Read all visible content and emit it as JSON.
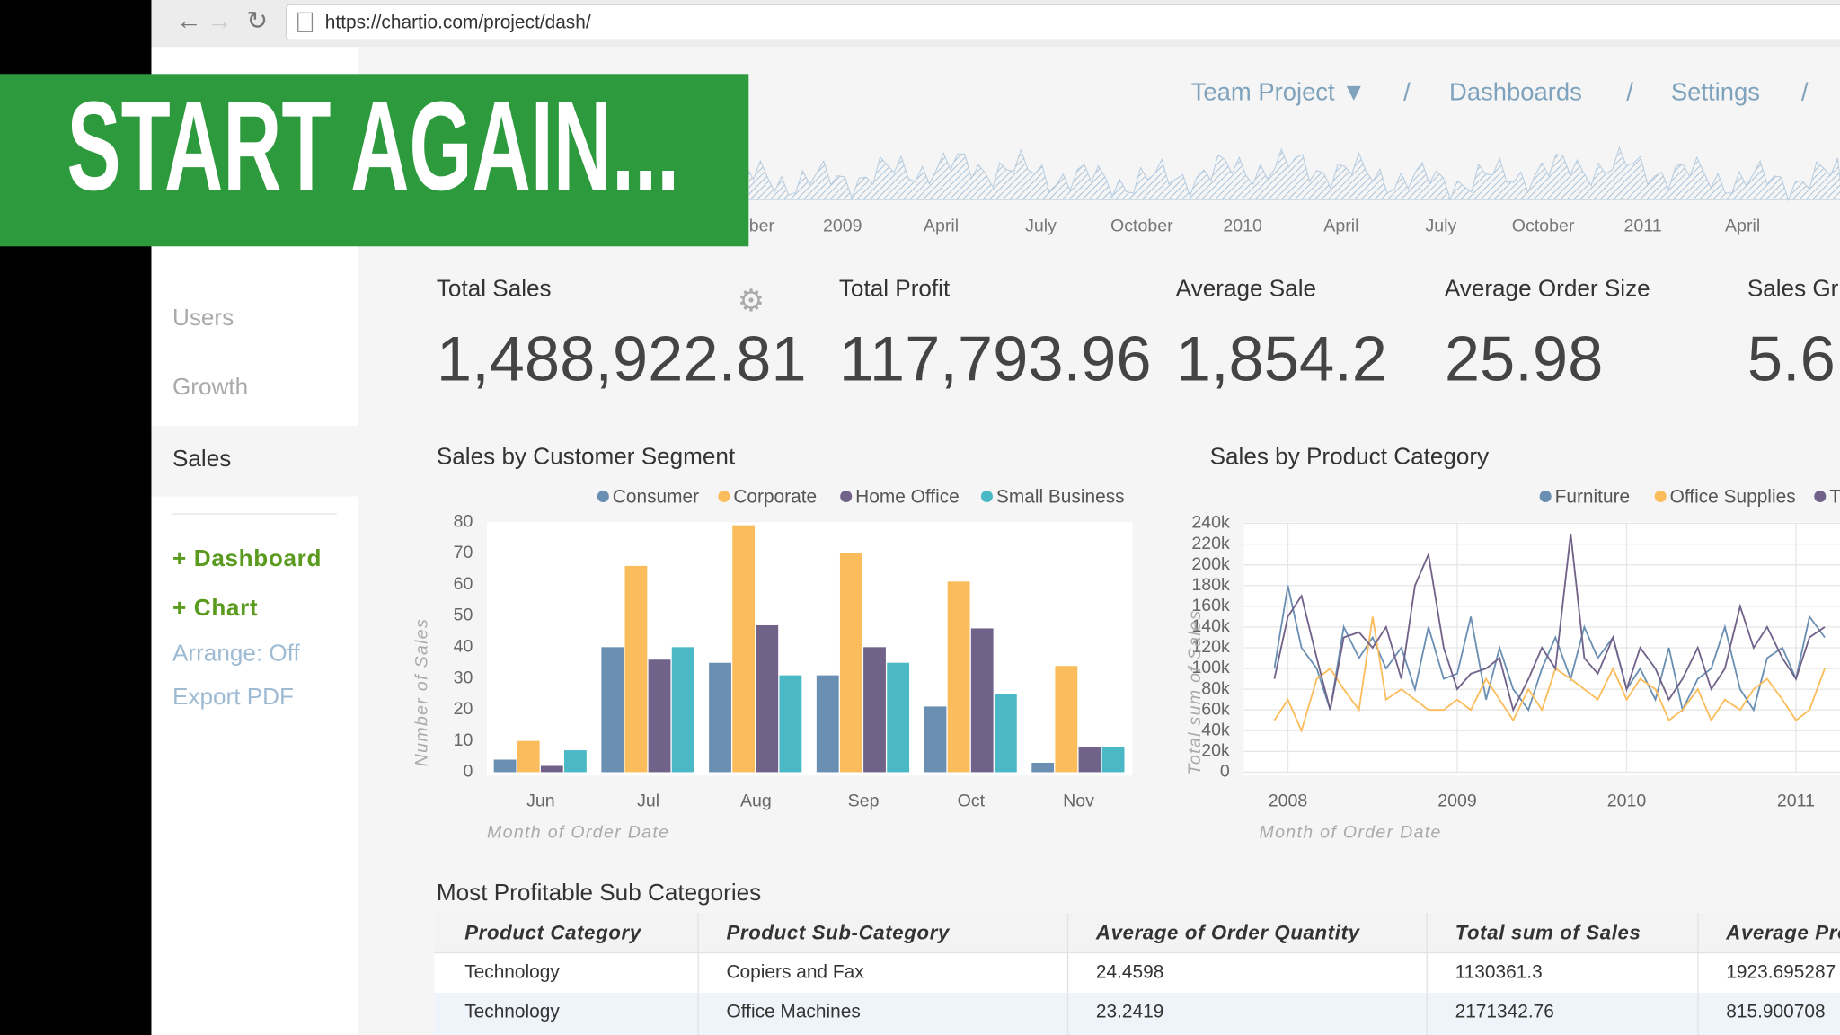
{
  "browser": {
    "url": "https://chartio.com/project/dash/"
  },
  "banner": {
    "text": "START AGAIN..."
  },
  "nav": [
    "Team Project ▼",
    "/",
    "Dashboards",
    "/",
    "Settings",
    "/"
  ],
  "timeline": {
    "labels": [
      "October",
      "2009",
      "April",
      "July",
      "October",
      "2010",
      "April",
      "July",
      "October",
      "2011",
      "April"
    ]
  },
  "sidebar": {
    "items": [
      "Users",
      "Growth",
      "Sales"
    ],
    "actions": [
      "+ Dashboard",
      "+ Chart",
      "Arrange: Off",
      "Export PDF"
    ]
  },
  "kpis": [
    {
      "label": "Total Sales",
      "value": "1,488,922.81"
    },
    {
      "label": "Total Profit",
      "value": "117,793.96"
    },
    {
      "label": "Average Sale",
      "value": "1,854.2"
    },
    {
      "label": "Average Order Size",
      "value": "25.98"
    },
    {
      "label": "Sales Gr",
      "value": "5.6"
    }
  ],
  "chart_data": [
    {
      "type": "bar",
      "title": "Sales by Customer Segment",
      "x_label": "Month of Order Date",
      "y_label": "Number of Sales",
      "categories": [
        "Jun",
        "Jul",
        "Aug",
        "Sep",
        "Oct",
        "Nov"
      ],
      "series": [
        {
          "name": "Consumer",
          "color": "#6a8fb3",
          "values": [
            4,
            40,
            35,
            31,
            21,
            3
          ]
        },
        {
          "name": "Corporate",
          "color": "#fbbd5c",
          "values": [
            10,
            66,
            79,
            70,
            61,
            34
          ]
        },
        {
          "name": "Home Office",
          "color": "#71628a",
          "values": [
            2,
            36,
            47,
            40,
            46,
            8
          ]
        },
        {
          "name": "Small Business",
          "color": "#4bb8c6",
          "values": [
            7,
            40,
            31,
            35,
            25,
            8
          ]
        }
      ],
      "ylim": [
        0,
        80
      ],
      "yticks": [
        0,
        10,
        20,
        30,
        40,
        50,
        60,
        70,
        80
      ],
      "legend": "top"
    },
    {
      "type": "line",
      "title": "Sales by Product Category",
      "x_label": "Month of Order Date",
      "y_label": "Total sum of Sales",
      "x": [
        2007.92,
        2008.0,
        2008.08,
        2008.17,
        2008.25,
        2008.33,
        2008.42,
        2008.5,
        2008.58,
        2008.67,
        2008.75,
        2008.83,
        2008.92,
        2009.0,
        2009.08,
        2009.17,
        2009.25,
        2009.33,
        2009.42,
        2009.5,
        2009.58,
        2009.67,
        2009.75,
        2009.83,
        2009.92,
        2010.0,
        2010.08,
        2010.17,
        2010.25,
        2010.33,
        2010.42,
        2010.5,
        2010.58,
        2010.67,
        2010.75,
        2010.83,
        2010.92,
        2011.0,
        2011.08,
        2011.17
      ],
      "series": [
        {
          "name": "Furniture",
          "color": "#6a8fb3",
          "values": [
            100000,
            180000,
            120000,
            100000,
            60000,
            140000,
            110000,
            130000,
            100000,
            120000,
            80000,
            140000,
            90000,
            95000,
            150000,
            70000,
            120000,
            80000,
            60000,
            100000,
            130000,
            90000,
            140000,
            110000,
            130000,
            80000,
            100000,
            70000,
            120000,
            60000,
            90000,
            100000,
            140000,
            80000,
            60000,
            110000,
            120000,
            90000,
            150000,
            130000
          ]
        },
        {
          "name": "Office Supplies",
          "color": "#fbbd5c",
          "values": [
            50000,
            70000,
            40000,
            90000,
            100000,
            80000,
            60000,
            150000,
            70000,
            80000,
            70000,
            60000,
            60000,
            70000,
            60000,
            90000,
            70000,
            50000,
            80000,
            60000,
            100000,
            90000,
            80000,
            70000,
            100000,
            70000,
            90000,
            80000,
            50000,
            60000,
            80000,
            50000,
            70000,
            60000,
            80000,
            90000,
            70000,
            50000,
            60000,
            100000
          ]
        },
        {
          "name": "T",
          "color": "#71628a",
          "values": [
            90000,
            150000,
            170000,
            110000,
            60000,
            130000,
            135000,
            120000,
            140000,
            90000,
            180000,
            210000,
            120000,
            80000,
            95000,
            100000,
            110000,
            60000,
            90000,
            120000,
            100000,
            230000,
            110000,
            95000,
            130000,
            80000,
            120000,
            100000,
            70000,
            90000,
            120000,
            80000,
            100000,
            160000,
            120000,
            140000,
            110000,
            90000,
            130000,
            140000
          ]
        }
      ],
      "xlim": [
        2007.74,
        2011.26
      ],
      "xticks": [
        2008,
        2009,
        2010,
        2011
      ],
      "ylim": [
        0,
        240000
      ],
      "yticks": [
        {
          "value": 0,
          "label": "0"
        },
        {
          "value": 20000,
          "label": "20k"
        },
        {
          "value": 40000,
          "label": "40k"
        },
        {
          "value": 60000,
          "label": "60k"
        },
        {
          "value": 80000,
          "label": "80k"
        },
        {
          "value": 100000,
          "label": "100k"
        },
        {
          "value": 120000,
          "label": "120k"
        },
        {
          "value": 140000,
          "label": "140k"
        },
        {
          "value": 160000,
          "label": "160k"
        },
        {
          "value": 180000,
          "label": "180k"
        },
        {
          "value": 200000,
          "label": "200k"
        },
        {
          "value": 220000,
          "label": "220k"
        },
        {
          "value": 240000,
          "label": "240k"
        }
      ],
      "grid": true,
      "legend": "top"
    }
  ],
  "table": {
    "title": "Most Profitable Sub Categories",
    "columns": [
      "Product Category",
      "Product Sub-Category",
      "Average of Order Quantity",
      "Total sum of Sales",
      "Average Pro"
    ],
    "rows": [
      [
        "Technology",
        "Copiers and Fax",
        "24.4598",
        "1130361.3",
        "1923.695287"
      ],
      [
        "Technology",
        "Office Machines",
        "23.2419",
        "2171342.76",
        "815.900708"
      ]
    ]
  }
}
